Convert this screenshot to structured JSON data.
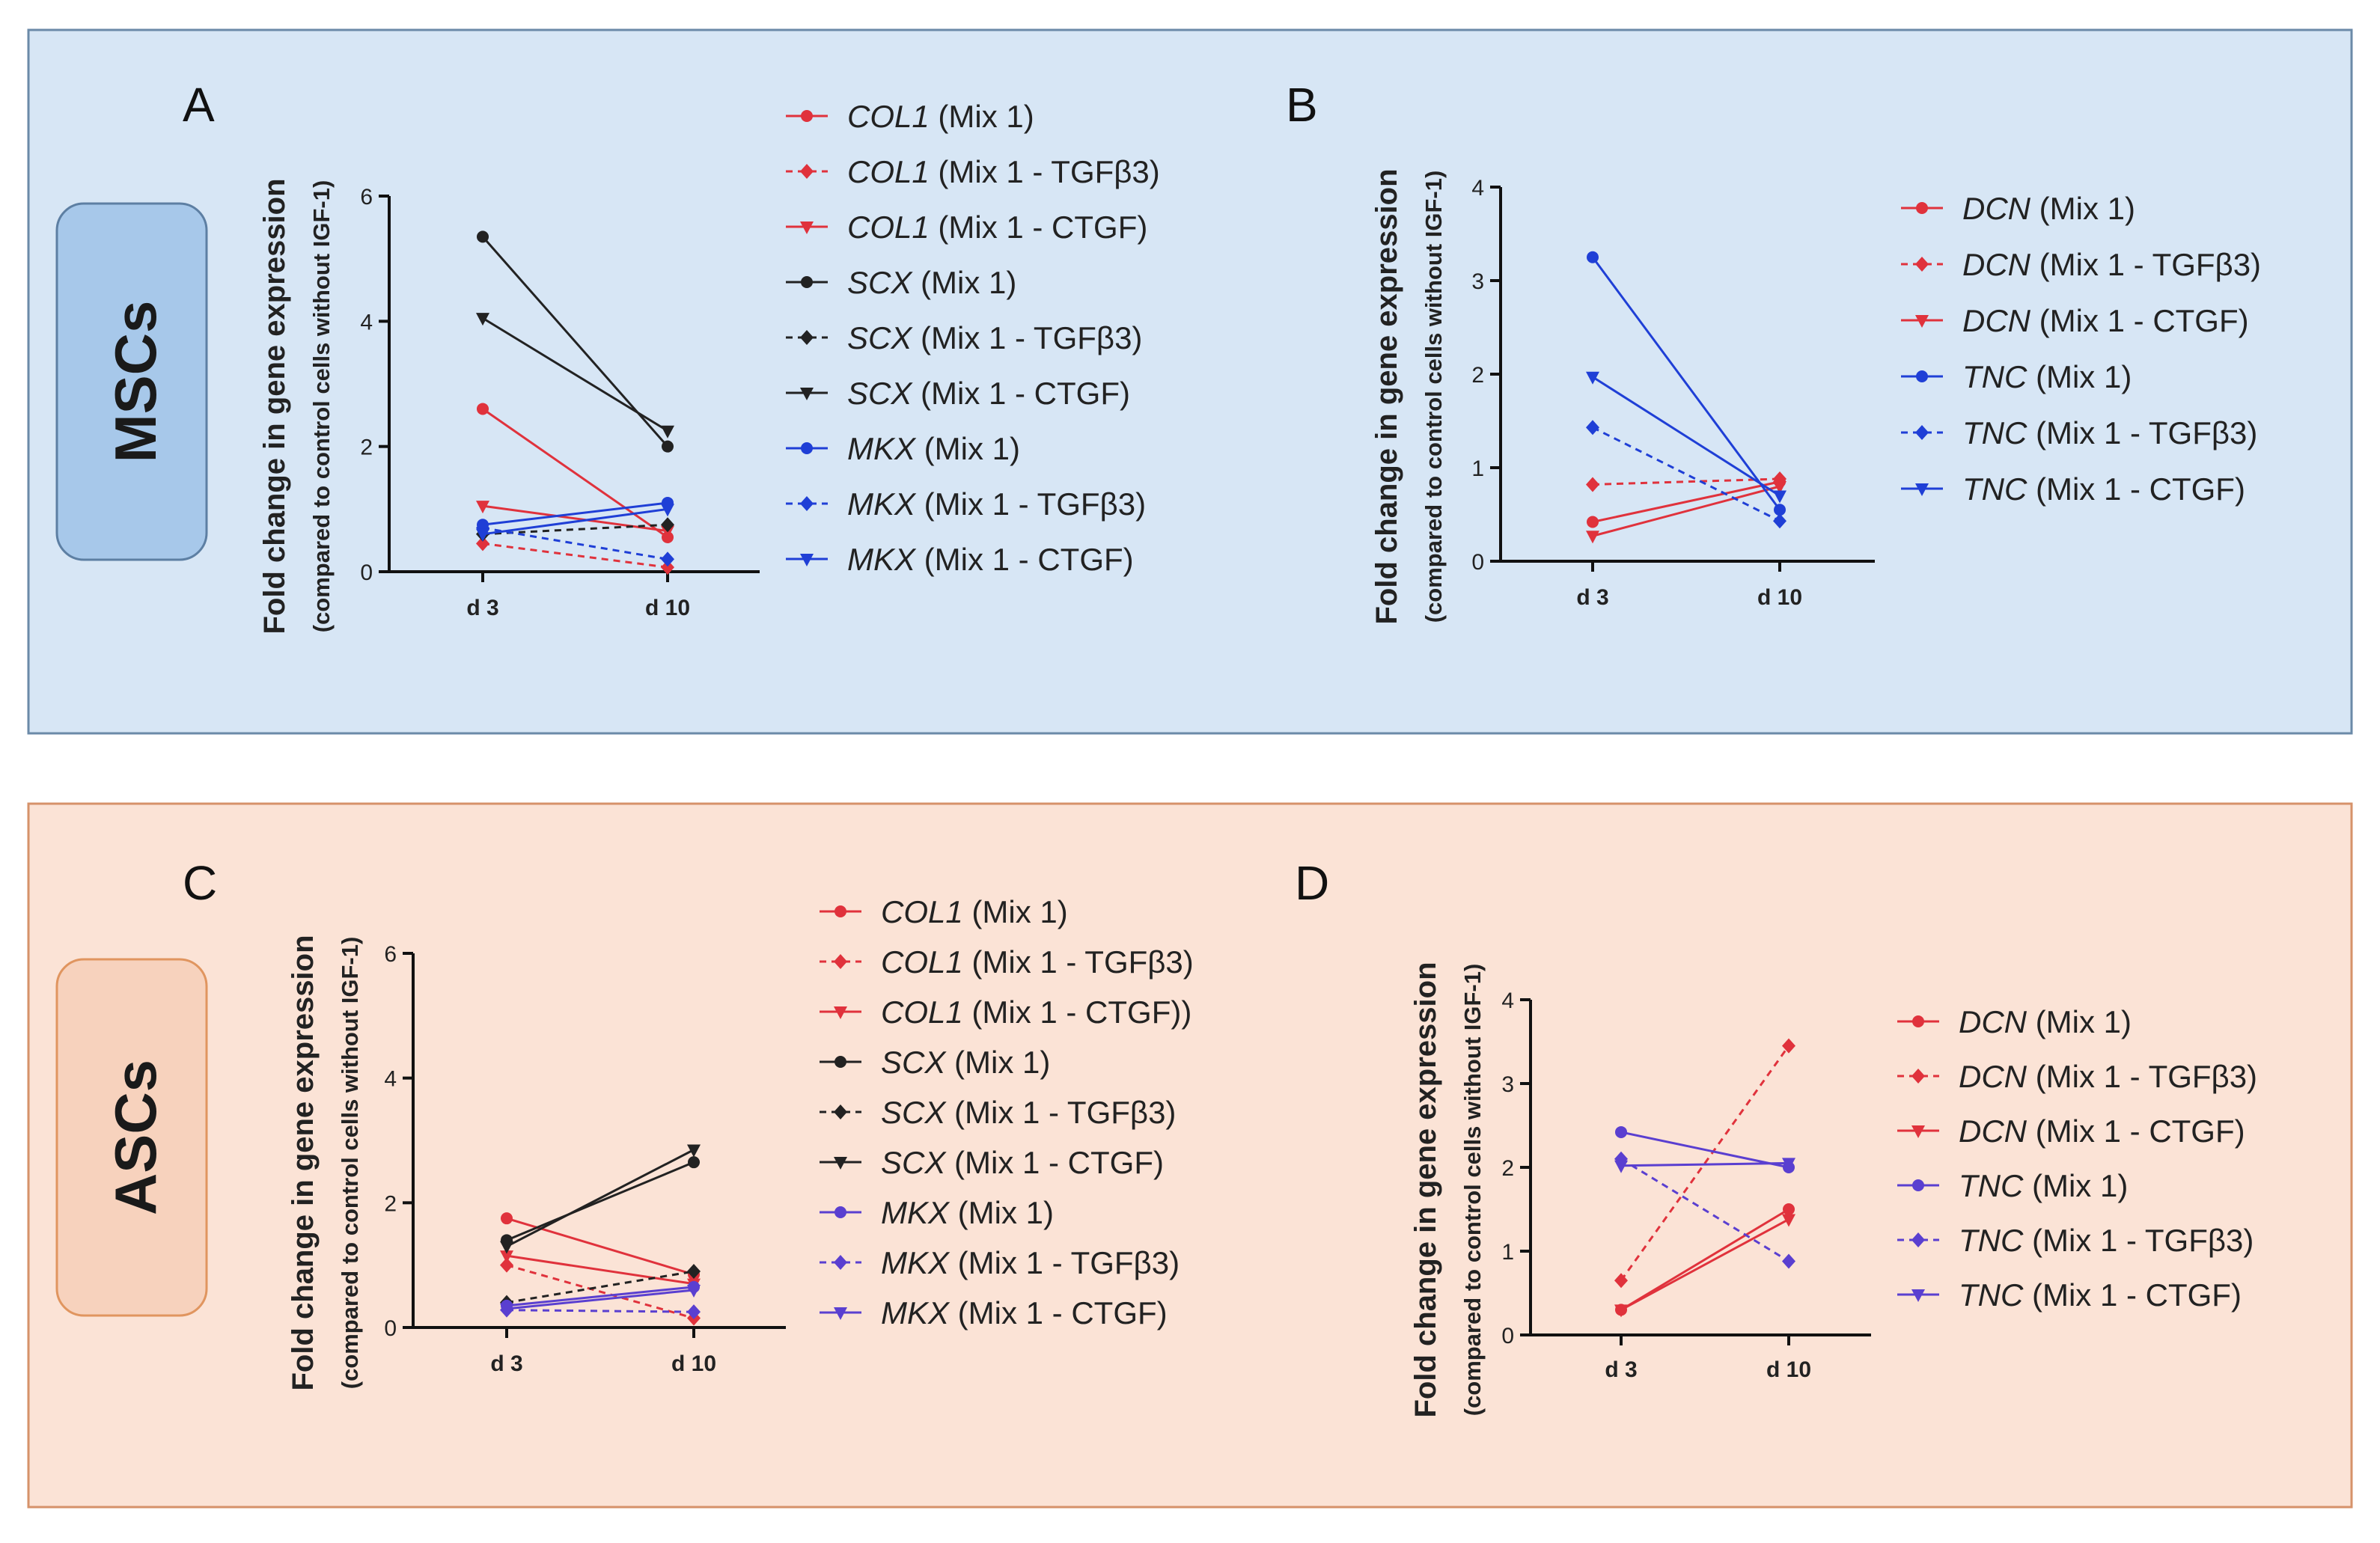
{
  "panel_groups": [
    {
      "cell_type": "MSCs",
      "panel_color": "#d7e6f5",
      "box_color": "#a7c8ea"
    },
    {
      "cell_type": "ASCs",
      "panel_color": "#fbe3d6",
      "box_color": "#f7d2bd"
    }
  ],
  "colors": {
    "red": "#e0323c",
    "black": "#222222",
    "blue": "#1f3fd6",
    "purple": "#5a3fd0"
  },
  "chart_data": [
    {
      "type": "line",
      "panel": "A",
      "title": "",
      "ylabel": "Fold change in gene expression",
      "ylabel_sub": "(compared to control cells without IGF-1)",
      "categories": [
        "d 3",
        "d 10"
      ],
      "ylim": [
        0,
        6
      ],
      "yticks": [
        "0",
        "2",
        "4",
        "6"
      ],
      "series": [
        {
          "gene": "COL1",
          "condition": "(Mix 1)",
          "color": "red",
          "marker": "circle",
          "dash": false,
          "values": [
            2.6,
            0.55
          ]
        },
        {
          "gene": "COL1",
          "condition": "(Mix 1 - TGFβ3)",
          "color": "red",
          "marker": "diamond",
          "dash": true,
          "values": [
            0.45,
            0.07
          ]
        },
        {
          "gene": "COL1",
          "condition": "(Mix 1 - CTGF)",
          "color": "red",
          "marker": "triangle",
          "dash": false,
          "values": [
            1.05,
            0.65
          ]
        },
        {
          "gene": "SCX",
          "condition": "(Mix 1)",
          "color": "black",
          "marker": "circle",
          "dash": false,
          "values": [
            5.35,
            2.0
          ]
        },
        {
          "gene": "SCX",
          "condition": "(Mix 1 - TGFβ3)",
          "color": "black",
          "marker": "diamond",
          "dash": true,
          "values": [
            0.6,
            0.75
          ]
        },
        {
          "gene": "SCX",
          "condition": "(Mix 1 - CTGF)",
          "color": "black",
          "marker": "triangle",
          "dash": false,
          "values": [
            4.05,
            2.25
          ]
        },
        {
          "gene": "MKX",
          "condition": "(Mix 1)",
          "color": "blue",
          "marker": "circle",
          "dash": false,
          "values": [
            0.75,
            1.1
          ]
        },
        {
          "gene": "MKX",
          "condition": "(Mix 1 - TGFβ3)",
          "color": "blue",
          "marker": "diamond",
          "dash": true,
          "values": [
            0.7,
            0.2
          ]
        },
        {
          "gene": "MKX",
          "condition": "(Mix 1 - CTGF)",
          "color": "blue",
          "marker": "triangle",
          "dash": false,
          "values": [
            0.6,
            1.0
          ]
        }
      ]
    },
    {
      "type": "line",
      "panel": "B",
      "title": "",
      "ylabel": "Fold change in gene expression",
      "ylabel_sub": "(compared to control cells without IGF-1)",
      "categories": [
        "d 3",
        "d 10"
      ],
      "ylim": [
        0,
        4
      ],
      "yticks": [
        "0",
        "1",
        "2",
        "3",
        "4"
      ],
      "series": [
        {
          "gene": "DCN",
          "condition": "(Mix 1)",
          "color": "red",
          "marker": "circle",
          "dash": false,
          "values": [
            0.42,
            0.85
          ]
        },
        {
          "gene": "DCN",
          "condition": "(Mix 1 - TGFβ3)",
          "color": "red",
          "marker": "diamond",
          "dash": true,
          "values": [
            0.82,
            0.88
          ]
        },
        {
          "gene": "DCN",
          "condition": "(Mix 1 - CTGF)",
          "color": "red",
          "marker": "triangle",
          "dash": false,
          "values": [
            0.27,
            0.8
          ]
        },
        {
          "gene": "TNC",
          "condition": "(Mix 1)",
          "color": "blue",
          "marker": "circle",
          "dash": false,
          "values": [
            3.25,
            0.55
          ]
        },
        {
          "gene": "TNC",
          "condition": "(Mix 1 - TGFβ3)",
          "color": "blue",
          "marker": "diamond",
          "dash": true,
          "values": [
            1.43,
            0.43
          ]
        },
        {
          "gene": "TNC",
          "condition": "(Mix 1 - CTGF)",
          "color": "blue",
          "marker": "triangle",
          "dash": false,
          "values": [
            1.97,
            0.7
          ]
        }
      ]
    },
    {
      "type": "line",
      "panel": "C",
      "title": "",
      "ylabel": "Fold change in gene expression",
      "ylabel_sub": "(compared to control cells without IGF-1)",
      "categories": [
        "d 3",
        "d 10"
      ],
      "ylim": [
        0,
        6
      ],
      "yticks": [
        "0",
        "2",
        "4",
        "6"
      ],
      "series": [
        {
          "gene": "COL1",
          "condition": "(Mix 1)",
          "color": "red",
          "marker": "circle",
          "dash": false,
          "values": [
            1.75,
            0.85
          ]
        },
        {
          "gene": "COL1",
          "condition": "(Mix 1 - TGFβ3)",
          "color": "red",
          "marker": "diamond",
          "dash": true,
          "values": [
            1.0,
            0.15
          ]
        },
        {
          "gene": "COL1",
          "condition": "(Mix 1 - CTGF))",
          "color": "red",
          "marker": "triangle",
          "dash": false,
          "values": [
            1.15,
            0.7
          ]
        },
        {
          "gene": "SCX",
          "condition": "(Mix 1)",
          "color": "black",
          "marker": "circle",
          "dash": false,
          "values": [
            1.4,
            2.65
          ]
        },
        {
          "gene": "SCX",
          "condition": "(Mix 1 - TGFβ3)",
          "color": "black",
          "marker": "diamond",
          "dash": true,
          "values": [
            0.4,
            0.9
          ]
        },
        {
          "gene": "SCX",
          "condition": "(Mix 1 - CTGF)",
          "color": "black",
          "marker": "triangle",
          "dash": false,
          "values": [
            1.3,
            2.85
          ]
        },
        {
          "gene": "MKX",
          "condition": "(Mix 1)",
          "color": "purple",
          "marker": "circle",
          "dash": false,
          "values": [
            0.35,
            0.65
          ]
        },
        {
          "gene": "MKX",
          "condition": "(Mix 1 - TGFβ3)",
          "color": "purple",
          "marker": "diamond",
          "dash": true,
          "values": [
            0.28,
            0.25
          ]
        },
        {
          "gene": "MKX",
          "condition": "(Mix 1 - CTGF)",
          "color": "purple",
          "marker": "triangle",
          "dash": false,
          "values": [
            0.3,
            0.6
          ]
        }
      ]
    },
    {
      "type": "line",
      "panel": "D",
      "title": "",
      "ylabel": "Fold change in gene expression",
      "ylabel_sub": "(compared to control cells without IGF-1)",
      "categories": [
        "d 3",
        "d 10"
      ],
      "ylim": [
        0,
        4
      ],
      "yticks": [
        "0",
        "1",
        "2",
        "3",
        "4"
      ],
      "series": [
        {
          "gene": "DCN",
          "condition": "(Mix 1)",
          "color": "red",
          "marker": "circle",
          "dash": false,
          "values": [
            0.3,
            1.5
          ]
        },
        {
          "gene": "DCN",
          "condition": "(Mix 1 - TGFβ3)",
          "color": "red",
          "marker": "diamond",
          "dash": true,
          "values": [
            0.65,
            3.45
          ]
        },
        {
          "gene": "DCN",
          "condition": "(Mix 1 - CTGF)",
          "color": "red",
          "marker": "triangle",
          "dash": false,
          "values": [
            0.3,
            1.38
          ]
        },
        {
          "gene": "TNC",
          "condition": "(Mix 1)",
          "color": "purple",
          "marker": "circle",
          "dash": false,
          "values": [
            2.42,
            2.0
          ]
        },
        {
          "gene": "TNC",
          "condition": "(Mix 1 - TGFβ3)",
          "color": "purple",
          "marker": "diamond",
          "dash": true,
          "values": [
            2.1,
            0.88
          ]
        },
        {
          "gene": "TNC",
          "condition": "(Mix 1 - CTGF)",
          "color": "purple",
          "marker": "triangle",
          "dash": false,
          "values": [
            2.02,
            2.05
          ]
        }
      ]
    }
  ]
}
